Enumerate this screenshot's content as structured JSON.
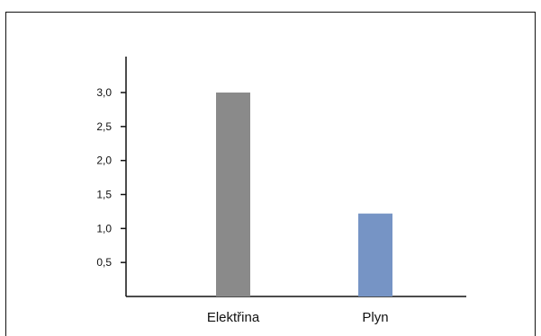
{
  "chart_data": {
    "type": "bar",
    "title": "",
    "xlabel": "",
    "ylabel": "",
    "categories": [
      "Elektřina",
      "Plyn"
    ],
    "values": [
      3.0,
      1.22
    ],
    "colors": [
      "#8a8a8a",
      "#7694c5"
    ],
    "ylim": [
      0,
      3.0
    ],
    "yticks": [
      0.5,
      1.0,
      1.5,
      2.0,
      2.5,
      3.0
    ],
    "ytick_labels": [
      "0,5",
      "1,0",
      "1,5",
      "2,0",
      "2,5",
      "3,0"
    ],
    "grid": false,
    "legend": "none"
  }
}
